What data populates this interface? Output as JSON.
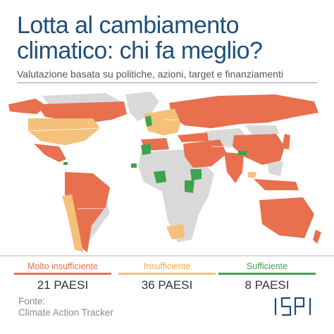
{
  "header": {
    "title_line1": "Lotta al cambiamento",
    "title_line2": "climatico: chi fa meglio?",
    "subtitle": "Valutazione basata su politiche, azioni, target e finanziamenti"
  },
  "colors": {
    "molto_insufficiente": "#e8704e",
    "insufficiente": "#f5c07a",
    "sufficiente": "#3fa34d",
    "no_data": "#d9d9d9",
    "title": "#1f4e79"
  },
  "legend": [
    {
      "label": "Molto insufficiente",
      "count": "21 PAESI",
      "color": "#e8704e"
    },
    {
      "label": "Insufficiente",
      "count": "36 PAESI",
      "color": "#f5c07a"
    },
    {
      "label": "Sufficiente",
      "count": "8 PAESI",
      "color": "#3fa34d"
    }
  ],
  "source": {
    "label": "Fonte:",
    "name": "Climate Action Tracker"
  },
  "logo": {
    "text": "ISPI",
    "color": "#1f4e79"
  }
}
